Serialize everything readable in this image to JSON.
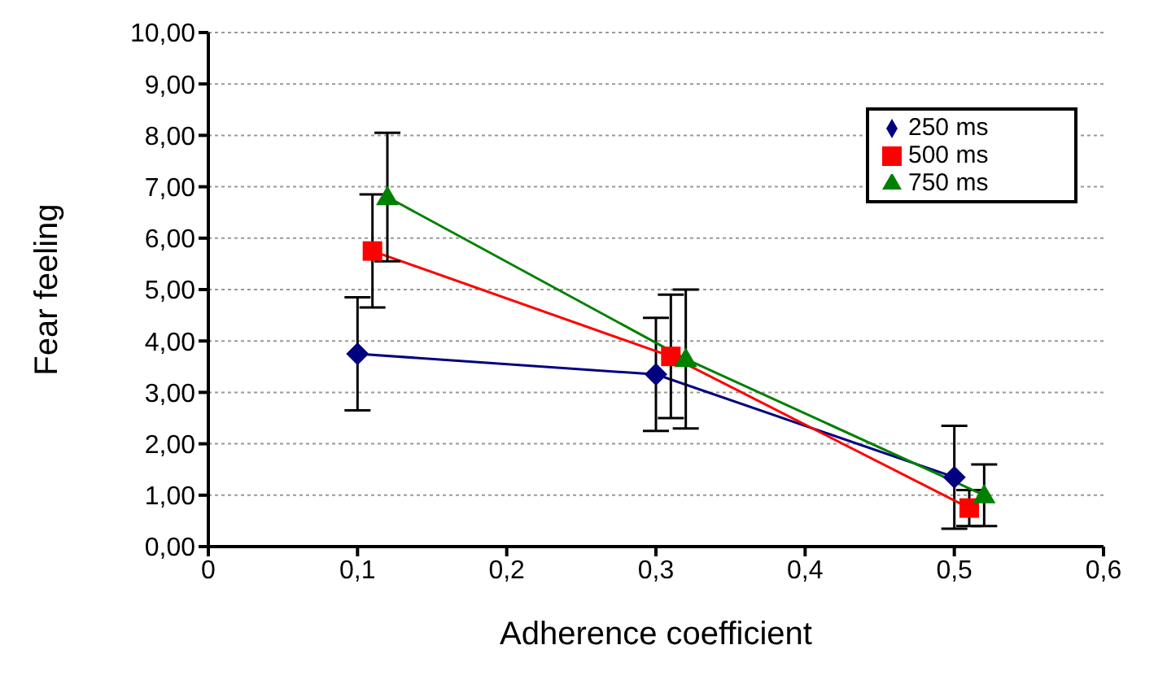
{
  "chart_data": {
    "type": "line",
    "xlabel": "Adherence coefficient",
    "ylabel": "Fear feeling",
    "xlim": [
      0,
      0.6
    ],
    "ylim": [
      0,
      10
    ],
    "xticks": [
      {
        "value": 0,
        "label": "0"
      },
      {
        "value": 0.1,
        "label": "0,1"
      },
      {
        "value": 0.2,
        "label": "0,2"
      },
      {
        "value": 0.3,
        "label": "0,3"
      },
      {
        "value": 0.4,
        "label": "0,4"
      },
      {
        "value": 0.5,
        "label": "0,5"
      },
      {
        "value": 0.6,
        "label": "0,6"
      }
    ],
    "yticks": [
      {
        "value": 0,
        "label": "0,00"
      },
      {
        "value": 1,
        "label": "1,00"
      },
      {
        "value": 2,
        "label": "2,00"
      },
      {
        "value": 3,
        "label": "3,00"
      },
      {
        "value": 4,
        "label": "4,00"
      },
      {
        "value": 5,
        "label": "5,00"
      },
      {
        "value": 6,
        "label": "6,00"
      },
      {
        "value": 7,
        "label": "7,00"
      },
      {
        "value": 8,
        "label": "8,00"
      },
      {
        "value": 9,
        "label": "9,00"
      },
      {
        "value": 10,
        "label": "10,00"
      }
    ],
    "grid": "y",
    "legend": "top right",
    "line_style": "solid",
    "series": [
      {
        "name": "250 ms",
        "color": "#000080",
        "marker": "diamond",
        "x": [
          0.1,
          0.3,
          0.5
        ],
        "values": [
          3.75,
          3.35,
          1.35
        ],
        "errors": [
          1.1,
          1.1,
          1.0
        ]
      },
      {
        "name": "500 ms",
        "color": "#ff0000",
        "marker": "square",
        "x": [
          0.11,
          0.31,
          0.51
        ],
        "values": [
          5.75,
          3.7,
          0.75
        ],
        "errors": [
          1.1,
          1.2,
          0.35
        ]
      },
      {
        "name": "750 ms",
        "color": "#008000",
        "marker": "triangle",
        "x": [
          0.12,
          0.32,
          0.52
        ],
        "values": [
          6.8,
          3.65,
          1.0
        ],
        "errors": [
          1.25,
          1.35,
          0.6
        ]
      }
    ]
  }
}
